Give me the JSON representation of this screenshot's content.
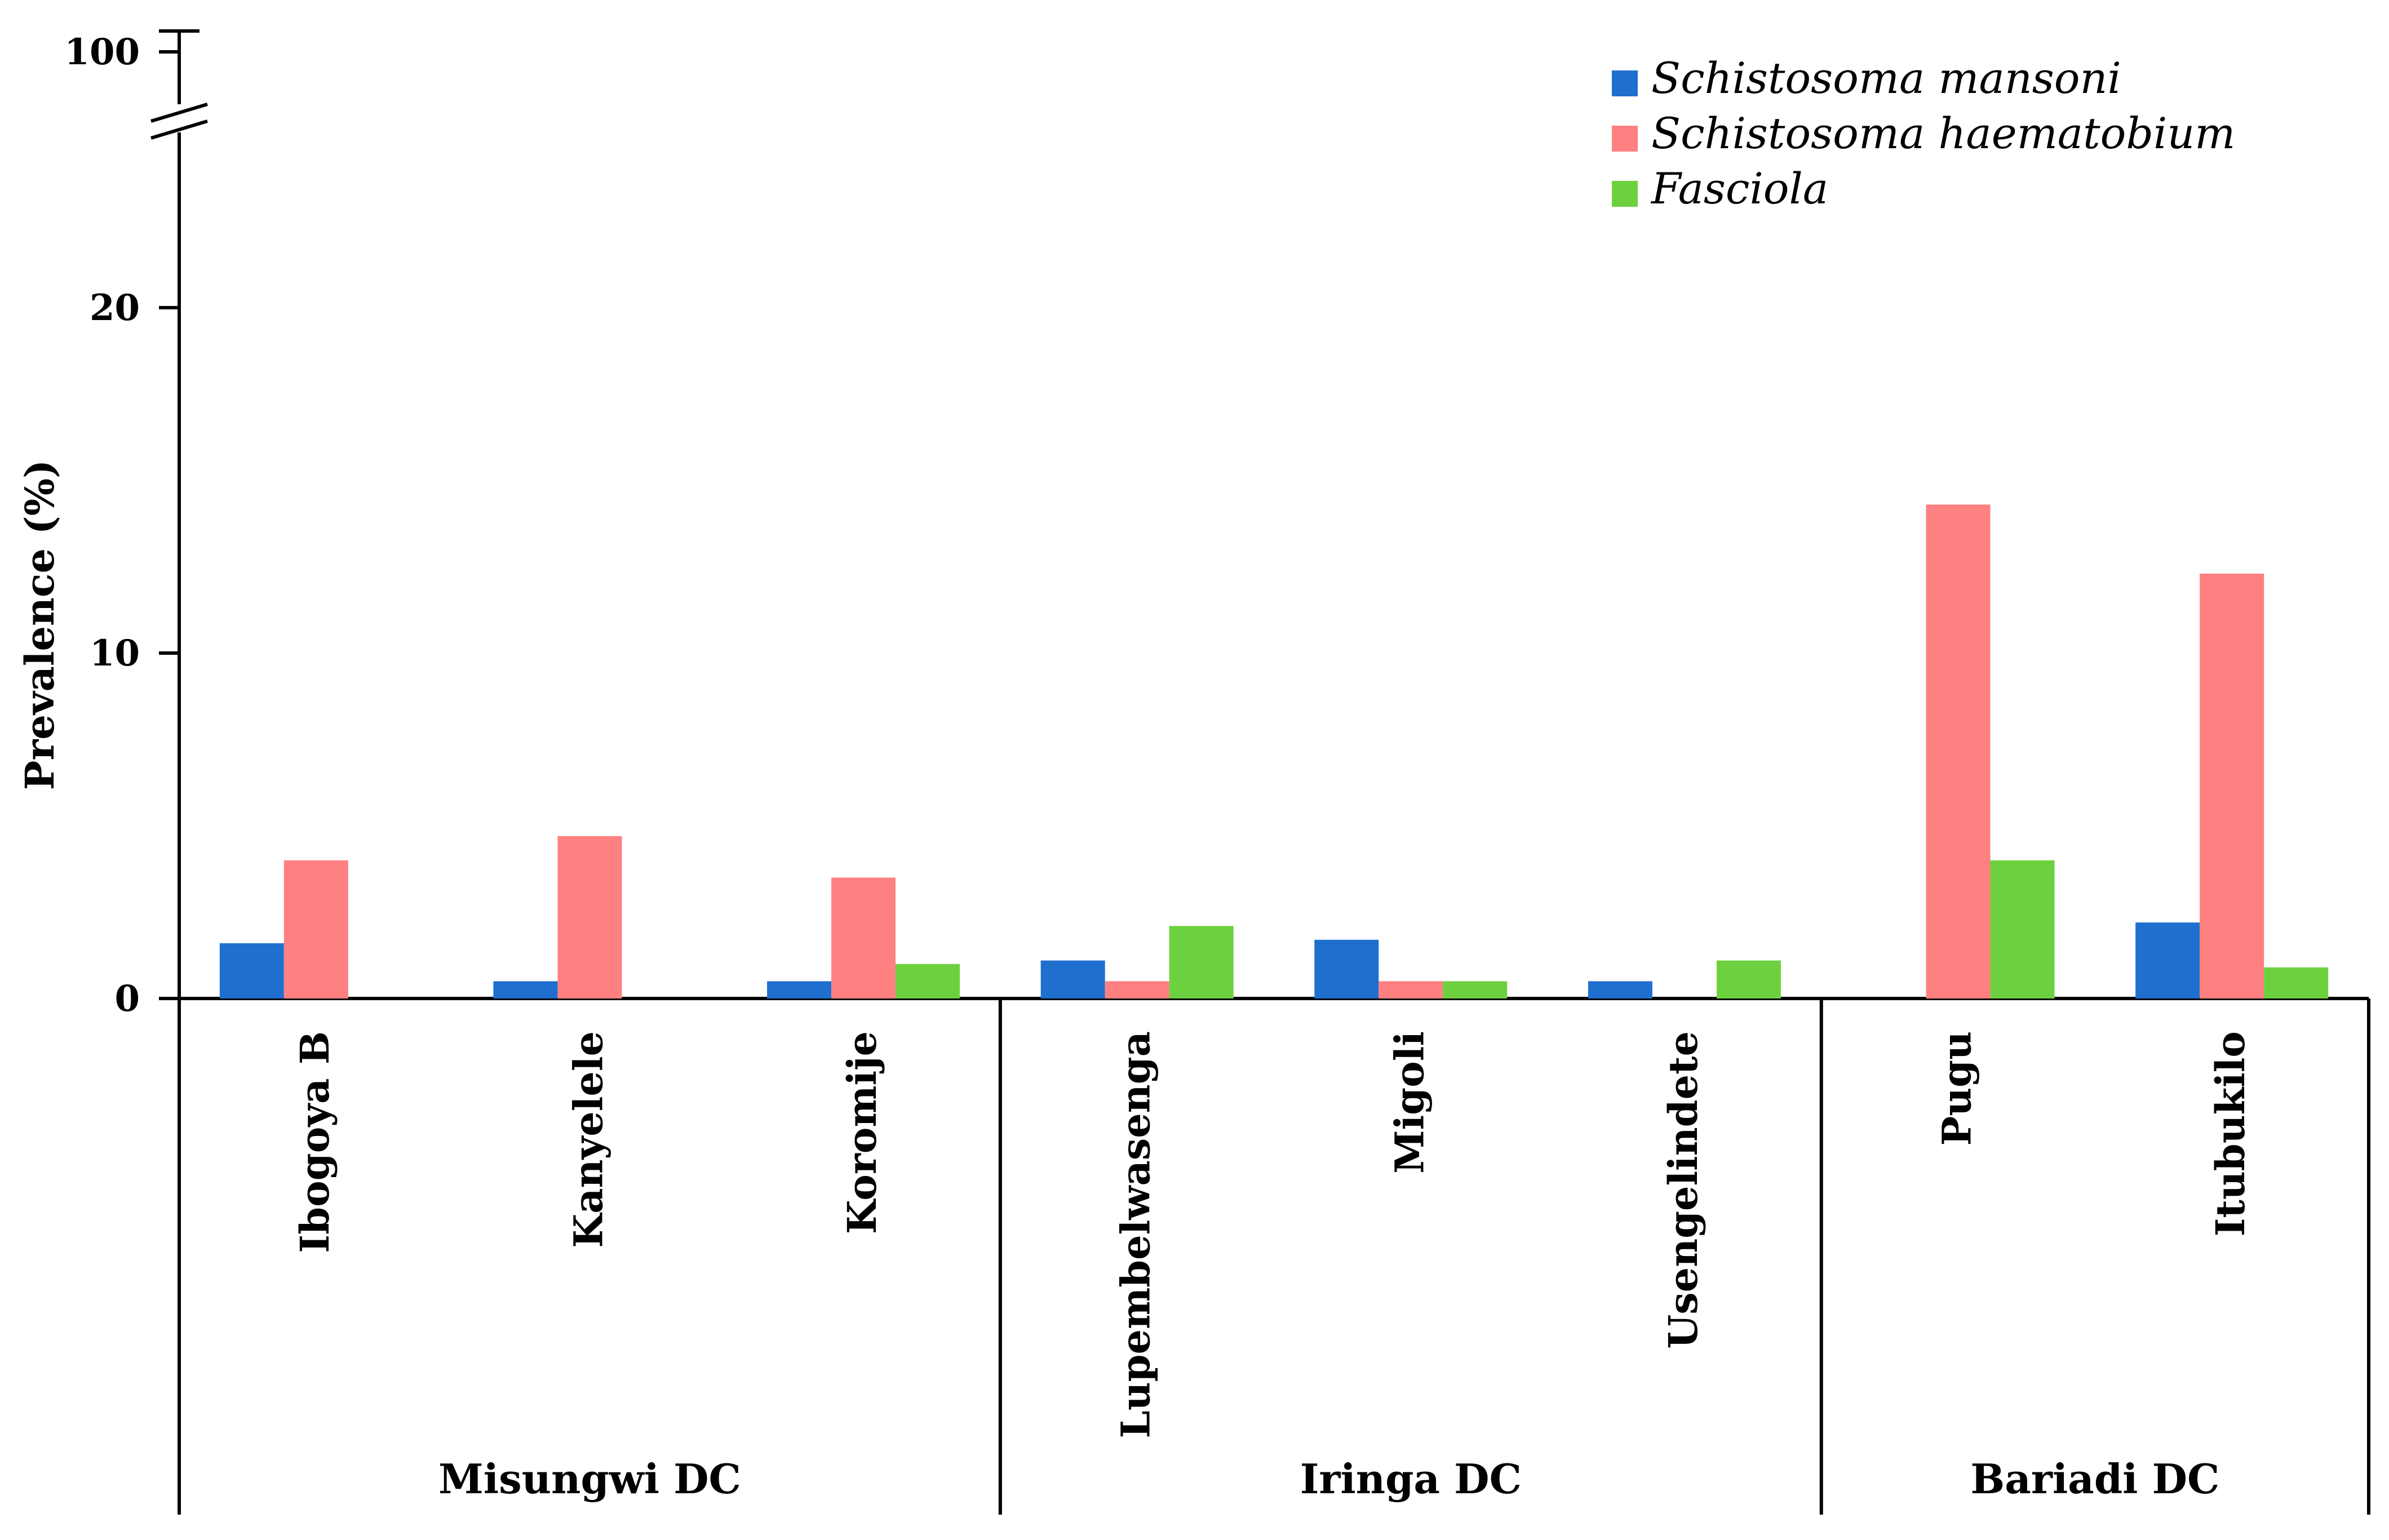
{
  "chart_data": {
    "type": "bar",
    "title": "",
    "xlabel": "",
    "ylabel": "Prevalence  (%)",
    "ylim": [
      0,
      25
    ],
    "y_break": {
      "from": 25,
      "to": 100,
      "top_tick": 100
    },
    "y_ticks": [
      0,
      10,
      20
    ],
    "y_tick_labels": [
      "0",
      "10",
      "20"
    ],
    "y_top_tick_label": "100",
    "legend_position": "top-right",
    "categories": [
      "Ibogoya B",
      "Kanyelele",
      "Koromije",
      "Lupembelwasenga",
      "Migoli",
      "Usengelindete",
      "Pugu",
      "Itubukilo"
    ],
    "groups": [
      {
        "label": "Misungwi DC",
        "categories": [
          "Ibogoya B",
          "Kanyelele",
          "Koromije"
        ]
      },
      {
        "label": "Iringa DC",
        "categories": [
          "Lupembelwasenga",
          "Migoli",
          "Usengelindete"
        ]
      },
      {
        "label": "Bariadi DC",
        "categories": [
          "Pugu",
          "Itubukilo"
        ]
      }
    ],
    "series": [
      {
        "name": "Schistosoma mansoni",
        "color": "#1f6fcf",
        "values": [
          1.6,
          0.5,
          0.5,
          1.1,
          1.7,
          0.5,
          0,
          2.2
        ]
      },
      {
        "name": "Schistosoma haematobium",
        "color": "#ff8080",
        "values": [
          4.0,
          4.7,
          3.5,
          0.5,
          0.5,
          0,
          14.3,
          12.3
        ]
      },
      {
        "name": "Fasciola",
        "color": "#6dd13f",
        "values": [
          0,
          0,
          1.0,
          2.1,
          0.5,
          1.1,
          4.0,
          0.9
        ]
      }
    ]
  }
}
